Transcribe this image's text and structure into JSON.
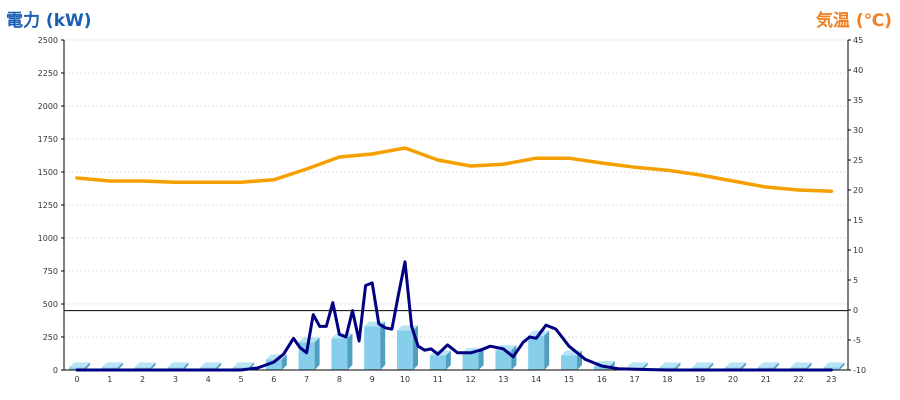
{
  "chart_data": {
    "type": "bar",
    "left_axis_title": "電力 (kW)",
    "right_axis_title": "気温 (℃)",
    "categories": [
      "0",
      "1",
      "2",
      "3",
      "4",
      "5",
      "6",
      "7",
      "8",
      "9",
      "10",
      "11",
      "12",
      "13",
      "14",
      "15",
      "16",
      "17",
      "18",
      "19",
      "20",
      "21",
      "22",
      "23"
    ],
    "left_ylim": [
      0,
      2500
    ],
    "left_ticks": [
      "0",
      "250",
      "500",
      "750",
      "1000",
      "1250",
      "1500",
      "1750",
      "2000",
      "2250",
      "2500"
    ],
    "right_ylim": [
      -10,
      45
    ],
    "right_ticks": [
      "-10",
      "-5",
      "0",
      "5",
      "10",
      "15",
      "20",
      "25",
      "30",
      "35",
      "40",
      "45"
    ],
    "reference_line_kw": 450,
    "grid": true,
    "series": [
      {
        "kind": "bar",
        "axis": "left",
        "color": "#87ceeb",
        "values": [
          20,
          20,
          20,
          20,
          20,
          20,
          80,
          210,
          240,
          330,
          300,
          110,
          130,
          150,
          260,
          110,
          30,
          20,
          20,
          20,
          20,
          20,
          20,
          20
        ]
      },
      {
        "kind": "line",
        "axis": "left",
        "color": "#000080",
        "x": [
          0,
          1,
          2,
          3,
          4,
          5,
          5.5,
          6,
          6.3,
          6.6,
          6.8,
          7,
          7.2,
          7.4,
          7.6,
          7.8,
          8,
          8.2,
          8.4,
          8.6,
          8.8,
          9,
          9.2,
          9.4,
          9.6,
          9.8,
          10,
          10.2,
          10.4,
          10.6,
          10.8,
          11,
          11.3,
          11.6,
          12,
          12.3,
          12.6,
          13,
          13.3,
          13.6,
          13.8,
          14,
          14.3,
          14.6,
          15,
          15.5,
          16,
          16.5,
          17,
          18,
          19,
          20,
          21,
          22,
          23
        ],
        "values": [
          0,
          0,
          0,
          0,
          0,
          0,
          15,
          60,
          120,
          240,
          170,
          130,
          420,
          330,
          330,
          510,
          270,
          250,
          450,
          220,
          640,
          660,
          350,
          320,
          310,
          570,
          820,
          330,
          180,
          150,
          160,
          120,
          190,
          130,
          130,
          150,
          180,
          160,
          100,
          210,
          250,
          240,
          340,
          310,
          180,
          80,
          30,
          10,
          5,
          0,
          0,
          0,
          0,
          0,
          0
        ]
      },
      {
        "kind": "line",
        "axis": "right",
        "color": "#f5a000",
        "values": [
          22,
          21.5,
          21.5,
          21.3,
          21.3,
          21.3,
          21.7,
          23.5,
          25.5,
          26,
          27,
          25,
          24,
          24.3,
          25.3,
          25.3,
          24.5,
          23.8,
          23.3,
          22.5,
          21.5,
          20.5,
          20,
          19.8
        ]
      }
    ]
  }
}
